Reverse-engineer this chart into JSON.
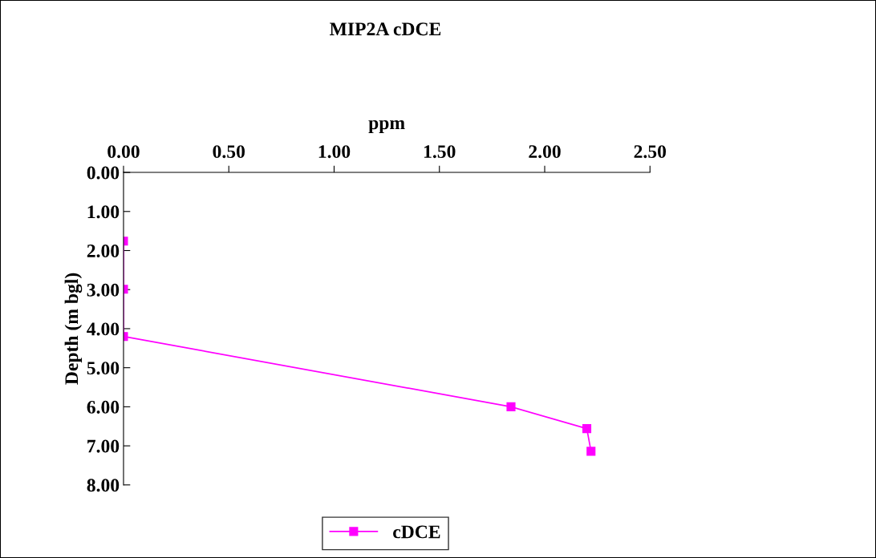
{
  "chart_data": {
    "type": "line",
    "title": "MIP2A cDCE",
    "xlabel": "ppm",
    "ylabel": "Depth (m bgl)",
    "series": [
      {
        "name": "cDCE",
        "color": "#ff00ff",
        "x": [
          0.0,
          0.0,
          0.0,
          1.84,
          2.2,
          2.22
        ],
        "values": [
          1.76,
          2.99,
          4.2,
          6.0,
          6.56,
          7.14
        ]
      }
    ],
    "xlim": [
      0,
      2.5
    ],
    "xticks": [
      {
        "value": 0,
        "label": "0.00"
      },
      {
        "value": 0.5,
        "label": "0.50"
      },
      {
        "value": 1,
        "label": "1.00"
      },
      {
        "value": 1.5,
        "label": "1.50"
      },
      {
        "value": 2,
        "label": "2.00"
      },
      {
        "value": 2.5,
        "label": "2.50"
      }
    ],
    "ylim": [
      8,
      0
    ],
    "yticks": [
      {
        "value": 0,
        "label": "0.00"
      },
      {
        "value": 1,
        "label": "1.00"
      },
      {
        "value": 2,
        "label": "2.00"
      },
      {
        "value": 3,
        "label": "3.00"
      },
      {
        "value": 4,
        "label": "4.00"
      },
      {
        "value": 5,
        "label": "5.00"
      },
      {
        "value": 6,
        "label": "6.00"
      },
      {
        "value": 7,
        "label": "7.00"
      },
      {
        "value": 8,
        "label": "8.00"
      }
    ],
    "marker": "square",
    "legend": "bottom",
    "grid": false
  }
}
